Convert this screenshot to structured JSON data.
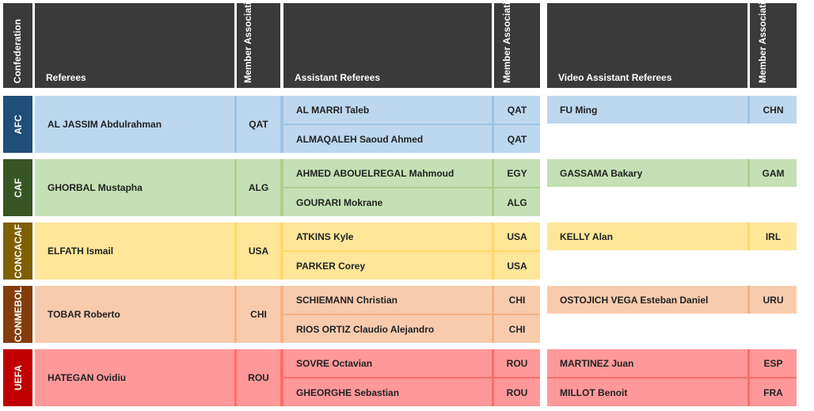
{
  "headers": {
    "confederation": "Confederation",
    "referees": "Referees",
    "member_association": "Member Association",
    "assistant_referees": "Assistant Referees",
    "video_assistant_referees": "Video Assistant Referees"
  },
  "rows": [
    {
      "confederation": "AFC",
      "referee": "AL JASSIM Abdulrahman",
      "referee_ma": "QAT",
      "assistants": [
        {
          "name": "AL MARRI Taleb",
          "ma": "QAT"
        },
        {
          "name": "ALMAQALEH Saoud Ahmed",
          "ma": "QAT"
        }
      ],
      "var": [
        {
          "name": "FU Ming",
          "ma": "CHN"
        }
      ]
    },
    {
      "confederation": "CAF",
      "referee": "GHORBAL Mustapha",
      "referee_ma": "ALG",
      "assistants": [
        {
          "name": "AHMED ABOUELREGAL Mahmoud",
          "ma": "EGY"
        },
        {
          "name": "GOURARI Mokrane",
          "ma": "ALG"
        }
      ],
      "var": [
        {
          "name": "GASSAMA Bakary",
          "ma": "GAM"
        }
      ]
    },
    {
      "confederation": "CONCACAF",
      "referee": "ELFATH Ismail",
      "referee_ma": "USA",
      "assistants": [
        {
          "name": "ATKINS Kyle",
          "ma": "USA"
        },
        {
          "name": "PARKER Corey",
          "ma": "USA"
        }
      ],
      "var": [
        {
          "name": "KELLY Alan",
          "ma": "IRL"
        }
      ]
    },
    {
      "confederation": "CONMEBOL",
      "referee": "TOBAR Roberto",
      "referee_ma": "CHI",
      "assistants": [
        {
          "name": "SCHIEMANN Christian",
          "ma": "CHI"
        },
        {
          "name": "RIOS ORTIZ Claudio Alejandro",
          "ma": "CHI"
        }
      ],
      "var": [
        {
          "name": "OSTOJICH VEGA Esteban Daniel",
          "ma": "URU"
        }
      ]
    },
    {
      "confederation": "UEFA",
      "referee": "HATEGAN Ovidiu",
      "referee_ma": "ROU",
      "assistants": [
        {
          "name": "SOVRE Octavian",
          "ma": "ROU"
        },
        {
          "name": "GHEORGHE Sebastian",
          "ma": "ROU"
        }
      ],
      "var": [
        {
          "name": "MARTINEZ Juan",
          "ma": "ESP"
        },
        {
          "name": "MILLOT Benoit",
          "ma": "FRA"
        }
      ]
    }
  ],
  "colors": {
    "header_bg": "#3a3a3a",
    "AFC": {
      "conf": "#1f4e79",
      "fill": "#bdd7ee",
      "line": "#9cc3e5"
    },
    "CAF": {
      "conf": "#375623",
      "fill": "#c5e0b4",
      "line": "#a9d18e"
    },
    "CONCACAF": {
      "conf": "#7f6000",
      "fill": "#ffe699",
      "line": "#ffd966"
    },
    "CONMEBOL": {
      "conf": "#843c0c",
      "fill": "#f8cbad",
      "line": "#f4b183"
    },
    "UEFA": {
      "conf": "#c00000",
      "fill": "#ff9999",
      "line": "#ff6b6b"
    }
  }
}
